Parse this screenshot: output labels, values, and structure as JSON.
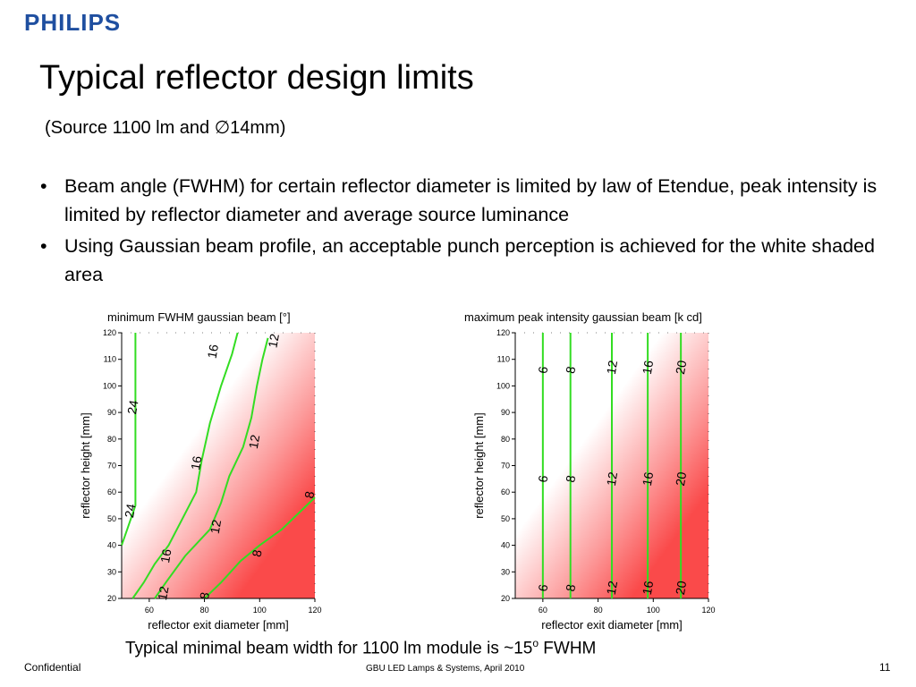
{
  "header": {
    "logo": "PHILIPS",
    "title": "Typical reflector design limits",
    "subtitle": "(Source 1100 lm and ∅14mm)"
  },
  "bullets": [
    "Beam angle (FWHM) for  certain reflector diameter is limited by law of Etendue, peak intensity is limited by reflector diameter and average source luminance",
    "Using Gaussian beam profile, an acceptable punch perception is achieved for the white shaded area"
  ],
  "colors": {
    "logo": "#1f4fa0",
    "heat": "#fa4a4a",
    "contour": "#33dd22"
  },
  "chart_data": [
    {
      "type": "contour",
      "title": "minimum FWHM gaussian beam [°]",
      "xlabel": "reflector exit diameter [mm]",
      "ylabel": "reflector height [mm]",
      "xlim": [
        50,
        120
      ],
      "ylim": [
        20,
        120
      ],
      "xticks": [
        60,
        80,
        100,
        120
      ],
      "yticks": [
        20,
        30,
        40,
        50,
        60,
        70,
        80,
        90,
        100,
        110,
        120
      ],
      "shading": "red increases with diameter, white shaded region upper-left",
      "contours": [
        {
          "level": "24",
          "points": [
            [
              50,
              40
            ],
            [
              52,
              46
            ],
            [
              55,
              55
            ],
            [
              55,
              65
            ],
            [
              55,
              90
            ],
            [
              55,
              120
            ]
          ],
          "labels": [
            [
              54,
              92
            ],
            [
              53,
              53
            ]
          ]
        },
        {
          "level": "16",
          "points": [
            [
              54,
              20
            ],
            [
              58,
              26
            ],
            [
              62,
              33
            ],
            [
              67,
              40
            ],
            [
              72,
              50
            ],
            [
              77,
              60
            ],
            [
              79,
              72
            ],
            [
              82,
              86
            ],
            [
              86,
              100
            ],
            [
              90,
              112
            ],
            [
              92,
              120
            ]
          ],
          "labels": [
            [
              77,
              71
            ],
            [
              66,
              36
            ],
            [
              83,
              113
            ]
          ]
        },
        {
          "level": "12",
          "points": [
            [
              62,
              20
            ],
            [
              66,
              26
            ],
            [
              73,
              36
            ],
            [
              82,
              46
            ],
            [
              86,
              56
            ],
            [
              89,
              66
            ],
            [
              94,
              77
            ],
            [
              97,
              88
            ],
            [
              99,
              100
            ],
            [
              101,
              110
            ],
            [
              103,
              118
            ]
          ],
          "labels": [
            [
              98,
              79
            ],
            [
              84,
              47
            ],
            [
              65,
              22
            ],
            [
              105,
              117
            ]
          ]
        },
        {
          "level": "8",
          "points": [
            [
              80,
              20
            ],
            [
              86,
              26
            ],
            [
              93,
              34
            ],
            [
              100,
              40
            ],
            [
              108,
              46
            ],
            [
              116,
              54
            ],
            [
              120,
              58
            ]
          ],
          "labels": [
            [
              99,
              37
            ],
            [
              118,
              59
            ],
            [
              80,
              21
            ]
          ]
        }
      ]
    },
    {
      "type": "contour",
      "title": "maximum peak intensity gaussian beam [k cd]",
      "xlabel": "reflector exit diameter [mm]",
      "ylabel": "reflector height [mm]",
      "xlim": [
        50,
        120
      ],
      "ylim": [
        20,
        120
      ],
      "xticks": [
        60,
        80,
        100,
        120
      ],
      "yticks": [
        20,
        30,
        40,
        50,
        60,
        70,
        80,
        90,
        100,
        110,
        120
      ],
      "shading": "red increases with diameter, white shaded region upper-left",
      "contours": [
        {
          "level": "6",
          "x": 60,
          "labels": [
            [
              60,
              24
            ],
            [
              60,
              65
            ],
            [
              60,
              106
            ]
          ]
        },
        {
          "level": "8",
          "x": 70,
          "labels": [
            [
              70,
              24
            ],
            [
              70,
              65
            ],
            [
              70,
              106
            ]
          ]
        },
        {
          "level": "12",
          "x": 85,
          "labels": [
            [
              85,
              24
            ],
            [
              85,
              65
            ],
            [
              85,
              107
            ]
          ]
        },
        {
          "level": "16",
          "x": 98,
          "labels": [
            [
              98,
              24
            ],
            [
              98,
              65
            ],
            [
              98,
              107
            ]
          ]
        },
        {
          "level": "20",
          "x": 110,
          "labels": [
            [
              110,
              24
            ],
            [
              110,
              65
            ],
            [
              110,
              107
            ]
          ]
        }
      ]
    }
  ],
  "conclusion": {
    "text": "Typical minimal beam width for 1100 lm module is ~15",
    "sup": "o",
    "suffix": " FWHM"
  },
  "footer": {
    "left": "Confidential",
    "center": "GBU LED Lamps & Systems, April 2010",
    "page": "11"
  }
}
